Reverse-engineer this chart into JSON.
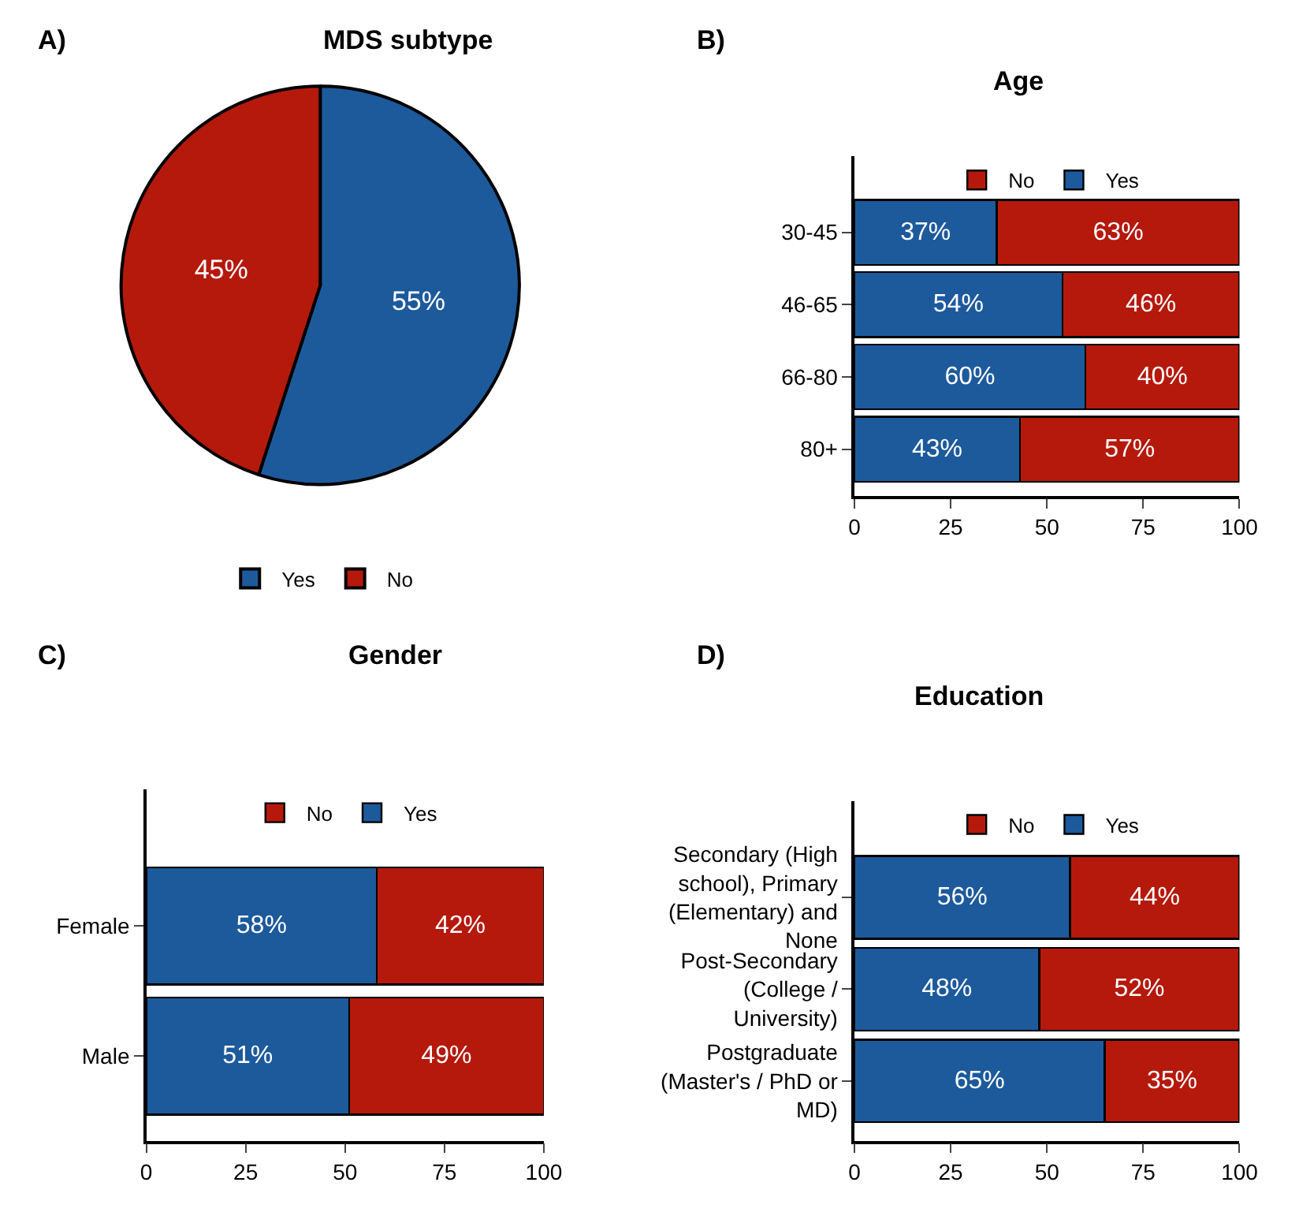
{
  "chart_data": [
    {
      "type": "pie",
      "title": "MDS subtype",
      "annotations": [
        "A)"
      ],
      "categories": [
        "Yes",
        "No"
      ],
      "values": [
        55,
        45
      ],
      "colors": [
        "#1d5a9c",
        "#b5190c"
      ],
      "value_labels": [
        "55%",
        "45%"
      ],
      "legend": "bottom"
    },
    {
      "type": "bar",
      "title": "Age",
      "annotations": [
        "B)"
      ],
      "categories": [
        "30-45",
        "46-65",
        "66-80",
        "80+"
      ],
      "stacked": true,
      "orientation": "horizontal",
      "xlim": [
        0,
        100
      ],
      "xticks": [
        0,
        25,
        50,
        75,
        100
      ],
      "legend": "top",
      "series": [
        {
          "name": "Yes",
          "color": "#1d5a9c",
          "values": [
            37,
            54,
            60,
            43
          ],
          "value_labels": [
            "37%",
            "54%",
            "60%",
            "43%"
          ]
        },
        {
          "name": "No",
          "color": "#b5190c",
          "values": [
            63,
            46,
            40,
            57
          ],
          "value_labels": [
            "63%",
            "46%",
            "40%",
            "57%"
          ]
        }
      ]
    },
    {
      "type": "bar",
      "title": "Gender",
      "annotations": [
        "C)"
      ],
      "categories": [
        "Female",
        "Male"
      ],
      "stacked": true,
      "orientation": "horizontal",
      "xlim": [
        0,
        100
      ],
      "xticks": [
        0,
        25,
        50,
        75,
        100
      ],
      "legend": "top",
      "series": [
        {
          "name": "Yes",
          "color": "#1d5a9c",
          "values": [
            58,
            51
          ],
          "value_labels": [
            "58%",
            "51%"
          ]
        },
        {
          "name": "No",
          "color": "#b5190c",
          "values": [
            42,
            49
          ],
          "value_labels": [
            "42%",
            "49%"
          ]
        }
      ]
    },
    {
      "type": "bar",
      "title": "Education",
      "annotations": [
        "D)"
      ],
      "categories": [
        "Secondary (High school), Primary (Elementary) and None",
        "Post-Secondary (College / University)",
        "Postgraduate (Master's / PhD or MD)"
      ],
      "stacked": true,
      "orientation": "horizontal",
      "xlim": [
        0,
        100
      ],
      "xticks": [
        0,
        25,
        50,
        75,
        100
      ],
      "legend": "top",
      "series": [
        {
          "name": "Yes",
          "color": "#1d5a9c",
          "values": [
            56,
            48,
            65
          ],
          "value_labels": [
            "56%",
            "48%",
            "65%"
          ]
        },
        {
          "name": "No",
          "color": "#b5190c",
          "values": [
            44,
            52,
            35
          ],
          "value_labels": [
            "44%",
            "52%",
            "35%"
          ]
        }
      ]
    }
  ]
}
